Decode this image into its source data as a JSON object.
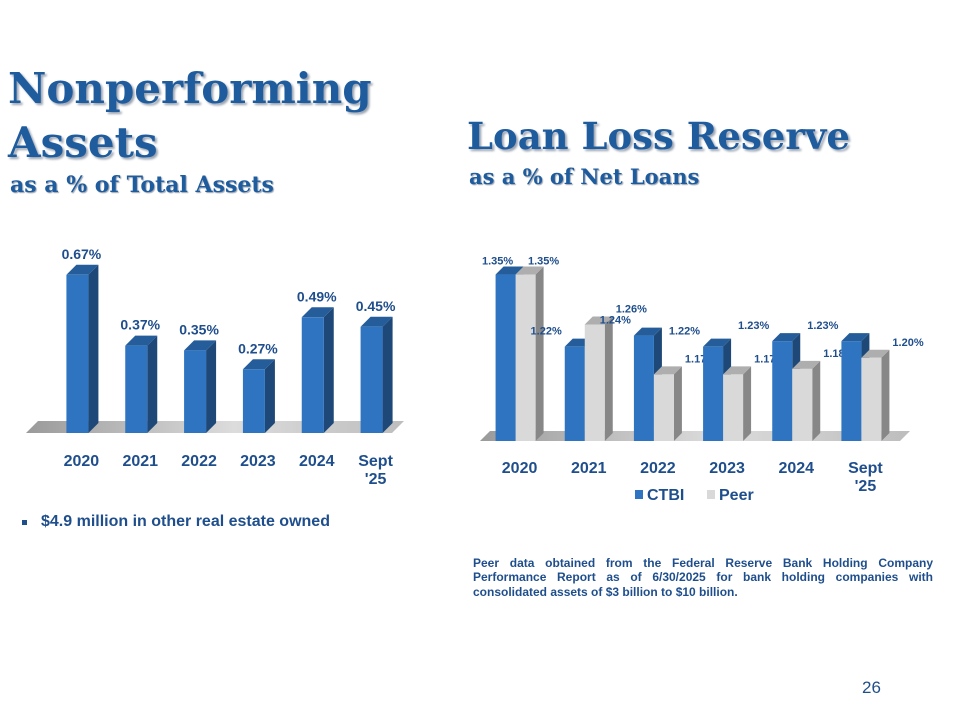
{
  "npa": {
    "title_line1": "Nonperforming",
    "title_line2": "Assets",
    "subtitle": "as a % of Total Assets"
  },
  "llr": {
    "title": "Loan Loss Reserve",
    "subtitle": "as a % of Net Loans"
  },
  "bullet": "$4.9 million in other real estate owned",
  "footnote": "Peer data obtained from the Federal Reserve Bank Holding Company Performance Report as of 6/30/2025 for bank holding companies with consolidated assets of $3 billion to $10 billion.",
  "page_number": "26",
  "colors": {
    "title": "#1f5c9e",
    "ctbi": "#2e74c0",
    "peer": "#d9d9d9",
    "label": "#1f4e8c"
  },
  "chart_data": [
    {
      "type": "bar",
      "title": "Nonperforming Assets as a % of Total Assets",
      "categories": [
        "2020",
        "2021",
        "2022",
        "2023",
        "2024",
        "Sept\n'25"
      ],
      "values": [
        0.67,
        0.37,
        0.35,
        0.27,
        0.49,
        0.45
      ],
      "data_labels": [
        "0.67%",
        "0.37%",
        "0.35%",
        "0.27%",
        "0.49%",
        "0.45%"
      ],
      "ylim": [
        0,
        0.72
      ],
      "xlabel": "",
      "ylabel": "",
      "legend": "none"
    },
    {
      "type": "bar",
      "title": "Loan Loss Reserve as a % of Net Loans",
      "categories": [
        "2020",
        "2021",
        "2022",
        "2023",
        "2024",
        "Sept\n'25"
      ],
      "series": [
        {
          "name": "CTBI",
          "values": [
            1.35,
            1.22,
            1.24,
            1.22,
            1.23,
            1.23
          ],
          "labels": [
            "1.35%",
            "1.22%",
            "1.24%",
            "1.22%",
            "1.23%",
            "1.23%"
          ]
        },
        {
          "name": "Peer",
          "values": [
            1.35,
            1.26,
            1.17,
            1.17,
            1.18,
            1.2
          ],
          "labels": [
            "1.35%",
            "1.26%",
            "1.17%",
            "1.17%",
            "1.18%",
            "1.20%"
          ]
        }
      ],
      "ylim": [
        1.05,
        1.36
      ],
      "xlabel": "",
      "ylabel": "",
      "legend": "bottom"
    }
  ]
}
